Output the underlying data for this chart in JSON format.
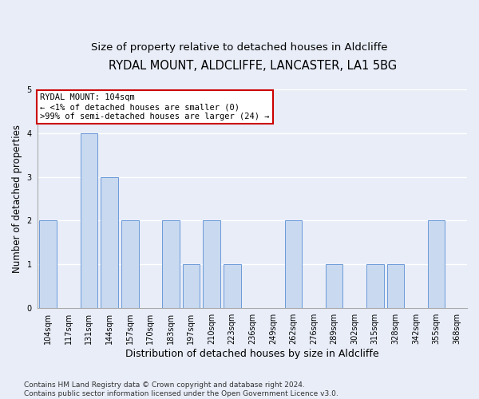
{
  "title1": "RYDAL MOUNT, ALDCLIFFE, LANCASTER, LA1 5BG",
  "title2": "Size of property relative to detached houses in Aldcliffe",
  "xlabel": "Distribution of detached houses by size in Aldcliffe",
  "ylabel": "Number of detached properties",
  "footnote": "Contains HM Land Registry data © Crown copyright and database right 2024.\nContains public sector information licensed under the Open Government Licence v3.0.",
  "categories": [
    "104sqm",
    "117sqm",
    "131sqm",
    "144sqm",
    "157sqm",
    "170sqm",
    "183sqm",
    "197sqm",
    "210sqm",
    "223sqm",
    "236sqm",
    "249sqm",
    "262sqm",
    "276sqm",
    "289sqm",
    "302sqm",
    "315sqm",
    "328sqm",
    "342sqm",
    "355sqm",
    "368sqm"
  ],
  "values": [
    2,
    0,
    4,
    3,
    2,
    0,
    2,
    1,
    2,
    1,
    0,
    0,
    2,
    0,
    1,
    0,
    1,
    1,
    0,
    2,
    0
  ],
  "bar_color": "#c8d9f0",
  "bar_edge_color": "#5b8fd4",
  "highlight_index": 0,
  "annotation_title": "RYDAL MOUNT: 104sqm",
  "annotation_line1": "← <1% of detached houses are smaller (0)",
  "annotation_line2": ">99% of semi-detached houses are larger (24) →",
  "ylim": [
    0,
    5
  ],
  "yticks": [
    0,
    1,
    2,
    3,
    4,
    5
  ],
  "background_color": "#e8edf8",
  "plot_bg_color": "#e8edf8",
  "grid_color": "#ffffff",
  "annotation_box_color": "#ffffff",
  "annotation_border_color": "#cc0000",
  "title1_fontsize": 10.5,
  "title2_fontsize": 9.5,
  "xlabel_fontsize": 9,
  "ylabel_fontsize": 8.5,
  "tick_fontsize": 7,
  "annotation_fontsize": 7.5,
  "footnote_fontsize": 6.5
}
